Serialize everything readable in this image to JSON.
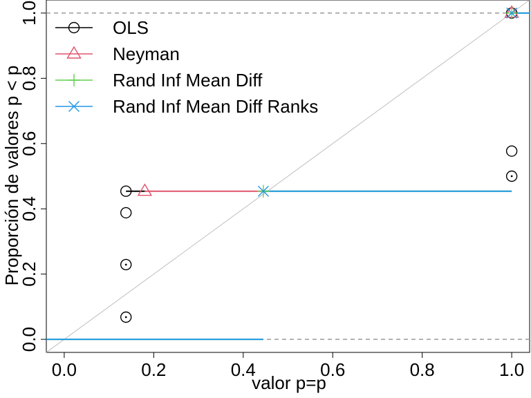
{
  "chart_data": {
    "type": "scatter",
    "title": "",
    "xlabel": "valor p=p",
    "ylabel": "Proporción de valores p < p",
    "xlim": [
      -0.04,
      1.04
    ],
    "ylim": [
      -0.04,
      1.04
    ],
    "x_ticks": [
      {
        "value": 0.0,
        "label": "0.0"
      },
      {
        "value": 0.2,
        "label": "0.2"
      },
      {
        "value": 0.4,
        "label": "0.4"
      },
      {
        "value": 0.6,
        "label": "0.6"
      },
      {
        "value": 0.8,
        "label": "0.8"
      },
      {
        "value": 1.0,
        "label": "1.0"
      }
    ],
    "y_ticks": [
      {
        "value": 0.0,
        "label": "0.0"
      },
      {
        "value": 0.2,
        "label": "0.2"
      },
      {
        "value": 0.4,
        "label": "0.4"
      },
      {
        "value": 0.6,
        "label": "0.6"
      },
      {
        "value": 0.8,
        "label": "0.8"
      },
      {
        "value": 1.0,
        "label": "1.0"
      }
    ],
    "reference_lines": {
      "diagonal": {
        "from": [
          -0.04,
          -0.04
        ],
        "to": [
          1.04,
          1.04
        ],
        "color": "#bebebe"
      },
      "horizontal_dashed": [
        0.0,
        1.0
      ],
      "dashed_color": "#999999"
    },
    "legend": {
      "placement": "top-left"
    },
    "series": [
      {
        "name": "OLS",
        "color": "#000000",
        "marker": "circle",
        "points": [
          {
            "x": 0.138,
            "y": 0.068
          },
          {
            "x": 0.138,
            "y": 0.229
          },
          {
            "x": 0.138,
            "y": 0.388
          },
          {
            "x": 0.138,
            "y": 0.454
          },
          {
            "x": 1.0,
            "y": 0.5
          },
          {
            "x": 1.0,
            "y": 0.577
          },
          {
            "x": 1.0,
            "y": 1.0
          }
        ],
        "dotted_points": [
          {
            "x": 0.138,
            "y": 0.068
          },
          {
            "x": 0.138,
            "y": 0.229
          },
          {
            "x": 1.0,
            "y": 0.5
          }
        ],
        "steps": [
          {
            "x1": 0.138,
            "x2": 0.18,
            "y": 0.454
          }
        ]
      },
      {
        "name": "Neyman",
        "color": "#DF536B",
        "marker": "triangle",
        "points": [
          {
            "x": 0.18,
            "y": 0.454
          },
          {
            "x": 1.0,
            "y": 1.0
          }
        ],
        "steps": [
          {
            "x1": 0.18,
            "x2": 0.445,
            "y": 0.454
          }
        ]
      },
      {
        "name": "Rand Inf Mean Diff",
        "color": "#61D04F",
        "marker": "plus",
        "points": [
          {
            "x": 0.445,
            "y": 0.454
          },
          {
            "x": 1.0,
            "y": 1.0
          }
        ],
        "steps": [
          {
            "x1": -0.04,
            "x2": 0.445,
            "y": 0.0
          },
          {
            "x1": 0.445,
            "x2": 1.0,
            "y": 0.454
          },
          {
            "x1": 1.0,
            "x2": 1.04,
            "y": 1.0
          }
        ]
      },
      {
        "name": "Rand Inf Mean Diff Ranks",
        "color": "#2297E6",
        "marker": "cross",
        "points": [
          {
            "x": 0.445,
            "y": 0.454
          },
          {
            "x": 1.0,
            "y": 1.0
          }
        ],
        "steps": [
          {
            "x1": -0.04,
            "x2": 0.445,
            "y": 0.0
          },
          {
            "x1": 0.445,
            "x2": 1.0,
            "y": 0.454
          },
          {
            "x1": 1.0,
            "x2": 1.04,
            "y": 1.0
          }
        ]
      }
    ]
  }
}
